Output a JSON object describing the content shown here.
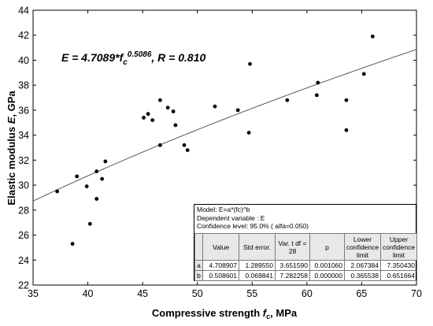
{
  "chart_data": {
    "type": "scatter",
    "title": "",
    "xlabel": "Compressive strength",
    "xlabel_symbol": "f",
    "xlabel_sub": "c",
    "xlabel_unit": ", MPa",
    "ylabel": "Elastic modulus",
    "ylabel_symbol": "E",
    "ylabel_unit": ", GPa",
    "xlim": [
      35,
      70
    ],
    "ylim": [
      22,
      44
    ],
    "xticks": [
      35,
      40,
      45,
      50,
      55,
      60,
      65,
      70
    ],
    "yticks": [
      22,
      24,
      26,
      28,
      30,
      32,
      34,
      36,
      38,
      40,
      42,
      44
    ],
    "grid": false,
    "points": [
      [
        37.2,
        29.5
      ],
      [
        38.6,
        25.3
      ],
      [
        39.0,
        30.7
      ],
      [
        39.9,
        29.9
      ],
      [
        40.2,
        26.9
      ],
      [
        40.8,
        28.9
      ],
      [
        40.8,
        31.1
      ],
      [
        41.3,
        30.5
      ],
      [
        41.6,
        31.9
      ],
      [
        45.1,
        35.4
      ],
      [
        45.5,
        35.7
      ],
      [
        45.9,
        35.2
      ],
      [
        46.6,
        33.2
      ],
      [
        46.6,
        36.8
      ],
      [
        47.3,
        36.2
      ],
      [
        47.8,
        35.9
      ],
      [
        48.0,
        34.8
      ],
      [
        48.8,
        33.2
      ],
      [
        49.1,
        32.8
      ],
      [
        51.6,
        36.3
      ],
      [
        53.7,
        36.0
      ],
      [
        54.7,
        34.2
      ],
      [
        54.8,
        39.7
      ],
      [
        58.2,
        36.8
      ],
      [
        60.9,
        37.2
      ],
      [
        61.0,
        38.2
      ],
      [
        63.6,
        36.8
      ],
      [
        63.6,
        34.4
      ],
      [
        65.2,
        38.9
      ],
      [
        66.0,
        41.9
      ]
    ],
    "fit": {
      "a": 4.7089,
      "b": 0.5086
    },
    "equation": {
      "lhs": "E = 4.7089*",
      "var": "f",
      "sub": "c",
      "exp": "0.5086",
      "rhs": ", R = 0.810"
    }
  },
  "stats_table": {
    "model": "Model: E=a*(fc)^b",
    "dependent": "Dependent variable : E",
    "confidence": "Confidence level: 95.0% ( alfa=0.050)",
    "headers": [
      "Value",
      "Std error.",
      "Var. t df = 28",
      "p",
      "Lower confidence limit",
      "Upper confidence limit"
    ],
    "rows": [
      {
        "label": "a",
        "cells": [
          "4.708907",
          "1.289550",
          "3.651590",
          "0.001060",
          "2.067384",
          "7.350430"
        ]
      },
      {
        "label": "b",
        "cells": [
          "0.508601",
          "0.069841",
          "7.282258",
          "0.000000",
          "0.365538",
          "0.651664"
        ]
      }
    ]
  }
}
